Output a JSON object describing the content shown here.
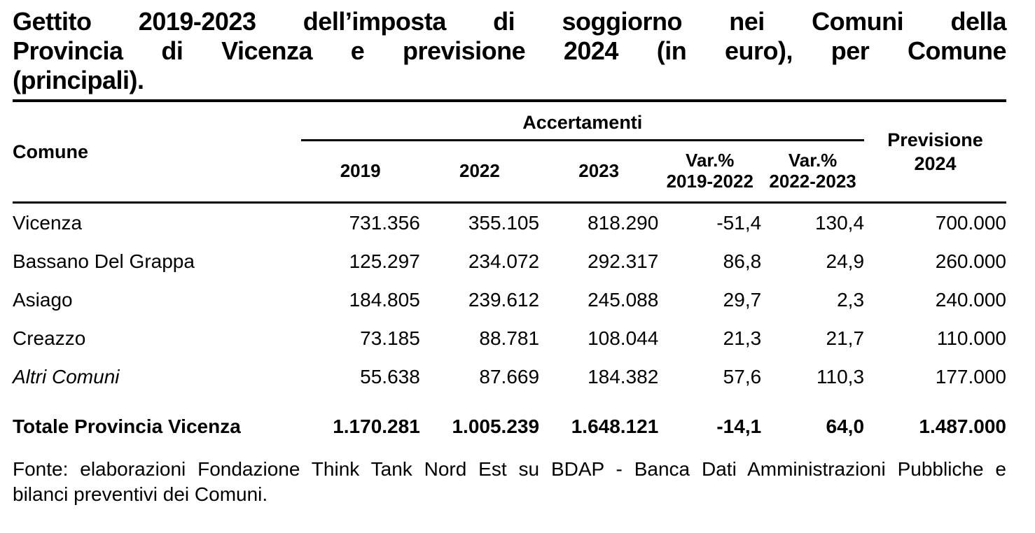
{
  "title": {
    "lines": [
      "Gettito 2019-2023 dell’imposta di soggiorno nei Comuni della",
      "Provincia di Vicenza e previsione 2024 (in euro), per Comune",
      "(principali)."
    ]
  },
  "table": {
    "columns": {
      "comune": "Comune",
      "accertamenti_group": "Accertamenti",
      "year_2019": "2019",
      "year_2022": "2022",
      "year_2023": "2023",
      "var_2019_2022": "Var.%\n2019-2022",
      "var_2022_2023": "Var.%\n2022-2023",
      "previsione_2024": "Previsione\n2024"
    },
    "rows": [
      {
        "comune": "Vicenza",
        "y2019": "731.356",
        "y2022": "355.105",
        "y2023": "818.290",
        "var_2019_2022": "-51,4",
        "var_2022_2023": "130,4",
        "previsione_2024": "700.000"
      },
      {
        "comune": "Bassano Del Grappa",
        "y2019": "125.297",
        "y2022": "234.072",
        "y2023": "292.317",
        "var_2019_2022": "86,8",
        "var_2022_2023": "24,9",
        "previsione_2024": "260.000"
      },
      {
        "comune": "Asiago",
        "y2019": "184.805",
        "y2022": "239.612",
        "y2023": "245.088",
        "var_2019_2022": "29,7",
        "var_2022_2023": "2,3",
        "previsione_2024": "240.000"
      },
      {
        "comune": "Creazzo",
        "y2019": "73.185",
        "y2022": "88.781",
        "y2023": "108.044",
        "var_2019_2022": "21,3",
        "var_2022_2023": "21,7",
        "previsione_2024": "110.000"
      },
      {
        "comune": "Altri Comuni",
        "y2019": "55.638",
        "y2022": "87.669",
        "y2023": "184.382",
        "var_2019_2022": "57,6",
        "var_2022_2023": "110,3",
        "previsione_2024": "177.000"
      }
    ],
    "total_row": {
      "comune": "Totale Provincia Vicenza",
      "y2019": "1.170.281",
      "y2022": "1.005.239",
      "y2023": "1.648.121",
      "var_2019_2022": "-14,1",
      "var_2022_2023": "64,0",
      "previsione_2024": "1.487.000"
    }
  },
  "source": {
    "lines": [
      "Fonte: elaborazioni Fondazione Think Tank Nord Est su BDAP - Banca Dati Amministrazioni Pubbliche e",
      "bilanci preventivi dei Comuni."
    ]
  },
  "colors": {
    "text": "#000000",
    "background": "#ffffff",
    "rules": "#000000"
  }
}
